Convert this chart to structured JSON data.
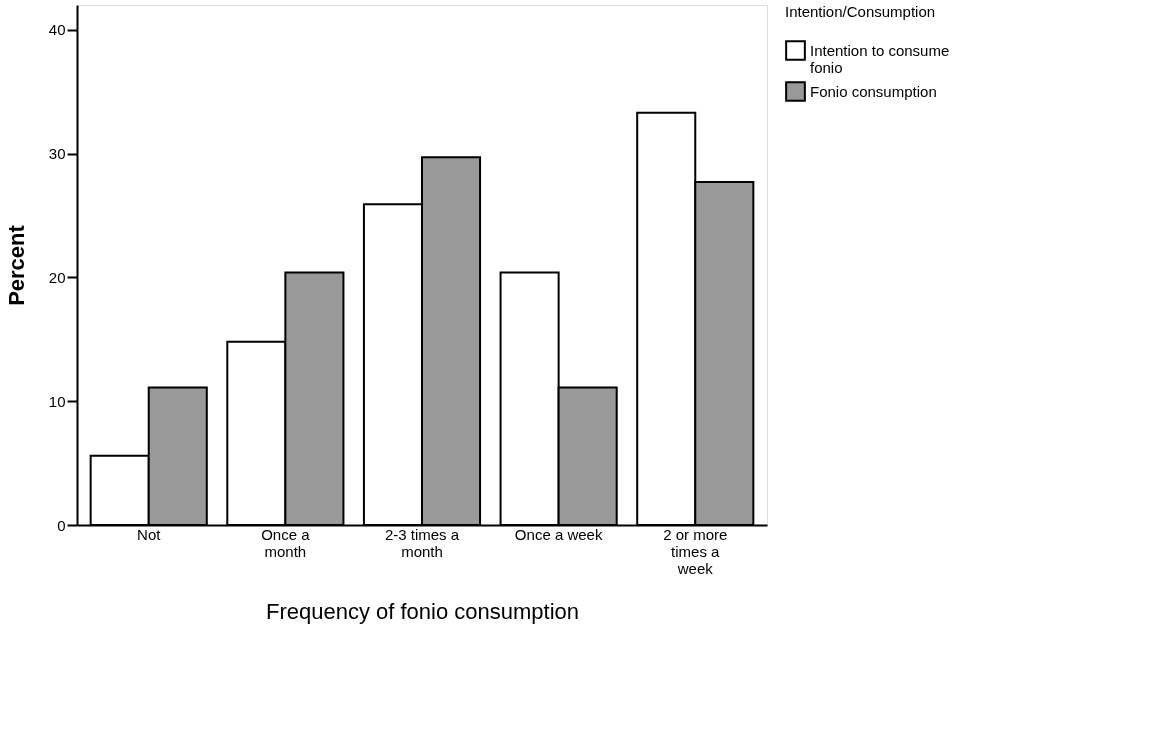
{
  "chart_data": {
    "type": "bar",
    "xlabel": "Frequency of fonio consumption",
    "ylabel": "Percent",
    "legend_title": "Intention/Consumption",
    "legend": "top right",
    "grid": false,
    "categories": [
      "Not",
      "Once a month",
      "2-3 times a month",
      "Once a week",
      "2 or more times a week"
    ],
    "series": [
      {
        "name": "Intention to consume fonio",
        "color": "#ffffff",
        "values": [
          5.6,
          14.8,
          25.9,
          20.4,
          33.3
        ]
      },
      {
        "name": "Fonio consumption",
        "color": "#999999",
        "values": [
          11.1,
          20.4,
          29.7,
          11.1,
          27.7
        ]
      }
    ],
    "ylim": [
      0,
      42
    ],
    "yticks": [
      0,
      10,
      20,
      30,
      40
    ]
  }
}
